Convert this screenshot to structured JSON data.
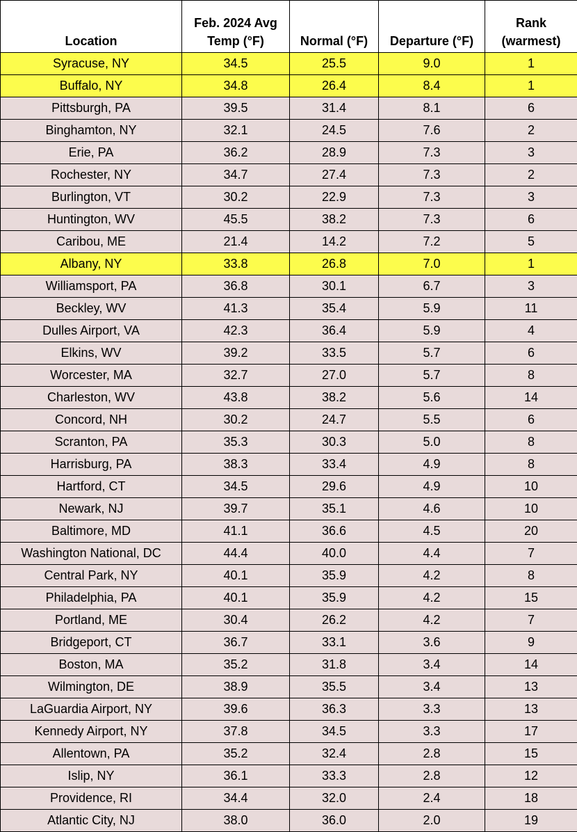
{
  "table": {
    "header": [
      [
        "Location"
      ],
      [
        "Feb. 2024 Avg",
        "Temp (°F)"
      ],
      [
        "Normal (°F)"
      ],
      [
        "Departure (°F)"
      ],
      [
        "Rank",
        "(warmest)"
      ]
    ],
    "row_color": "#e8dada",
    "highlight_color": "#fcfc4c",
    "highlighted_rows": [
      0,
      1,
      9
    ],
    "rows": [
      [
        "Syracuse, NY",
        "34.5",
        "25.5",
        "9.0",
        "1"
      ],
      [
        "Buffalo, NY",
        "34.8",
        "26.4",
        "8.4",
        "1"
      ],
      [
        "Pittsburgh, PA",
        "39.5",
        "31.4",
        "8.1",
        "6"
      ],
      [
        "Binghamton, NY",
        "32.1",
        "24.5",
        "7.6",
        "2"
      ],
      [
        "Erie, PA",
        "36.2",
        "28.9",
        "7.3",
        "3"
      ],
      [
        "Rochester, NY",
        "34.7",
        "27.4",
        "7.3",
        "2"
      ],
      [
        "Burlington, VT",
        "30.2",
        "22.9",
        "7.3",
        "3"
      ],
      [
        "Huntington, WV",
        "45.5",
        "38.2",
        "7.3",
        "6"
      ],
      [
        "Caribou, ME",
        "21.4",
        "14.2",
        "7.2",
        "5"
      ],
      [
        "Albany, NY",
        "33.8",
        "26.8",
        "7.0",
        "1"
      ],
      [
        "Williamsport, PA",
        "36.8",
        "30.1",
        "6.7",
        "3"
      ],
      [
        "Beckley, WV",
        "41.3",
        "35.4",
        "5.9",
        "11"
      ],
      [
        "Dulles Airport, VA",
        "42.3",
        "36.4",
        "5.9",
        "4"
      ],
      [
        "Elkins, WV",
        "39.2",
        "33.5",
        "5.7",
        "6"
      ],
      [
        "Worcester, MA",
        "32.7",
        "27.0",
        "5.7",
        "8"
      ],
      [
        "Charleston, WV",
        "43.8",
        "38.2",
        "5.6",
        "14"
      ],
      [
        "Concord, NH",
        "30.2",
        "24.7",
        "5.5",
        "6"
      ],
      [
        "Scranton, PA",
        "35.3",
        "30.3",
        "5.0",
        "8"
      ],
      [
        "Harrisburg, PA",
        "38.3",
        "33.4",
        "4.9",
        "8"
      ],
      [
        "Hartford, CT",
        "34.5",
        "29.6",
        "4.9",
        "10"
      ],
      [
        "Newark, NJ",
        "39.7",
        "35.1",
        "4.6",
        "10"
      ],
      [
        "Baltimore, MD",
        "41.1",
        "36.6",
        "4.5",
        "20"
      ],
      [
        "Washington National, DC",
        "44.4",
        "40.0",
        "4.4",
        "7"
      ],
      [
        "Central Park, NY",
        "40.1",
        "35.9",
        "4.2",
        "8"
      ],
      [
        "Philadelphia, PA",
        "40.1",
        "35.9",
        "4.2",
        "15"
      ],
      [
        "Portland, ME",
        "30.4",
        "26.2",
        "4.2",
        "7"
      ],
      [
        "Bridgeport, CT",
        "36.7",
        "33.1",
        "3.6",
        "9"
      ],
      [
        "Boston, MA",
        "35.2",
        "31.8",
        "3.4",
        "14"
      ],
      [
        "Wilmington, DE",
        "38.9",
        "35.5",
        "3.4",
        "13"
      ],
      [
        "LaGuardia Airport, NY",
        "39.6",
        "36.3",
        "3.3",
        "13"
      ],
      [
        "Kennedy Airport, NY",
        "37.8",
        "34.5",
        "3.3",
        "17"
      ],
      [
        "Allentown, PA",
        "35.2",
        "32.4",
        "2.8",
        "15"
      ],
      [
        "Islip, NY",
        "36.1",
        "33.3",
        "2.8",
        "12"
      ],
      [
        "Providence, RI",
        "34.4",
        "32.0",
        "2.4",
        "18"
      ],
      [
        "Atlantic City, NJ",
        "38.0",
        "36.0",
        "2.0",
        "19"
      ]
    ]
  }
}
